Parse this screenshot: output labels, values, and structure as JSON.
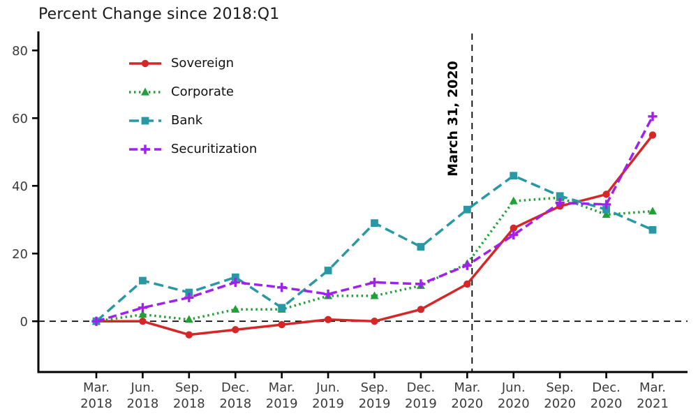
{
  "chart_data": {
    "type": "line",
    "title": "Percent Change since 2018:Q1",
    "xlabel": "",
    "ylabel": "",
    "categories": [
      "Mar. 2018",
      "Jun. 2018",
      "Sep. 2018",
      "Dec. 2018",
      "Mar. 2019",
      "Jun. 2019",
      "Sep. 2019",
      "Dec. 2019",
      "Mar. 2020",
      "Jun. 2020",
      "Sep. 2020",
      "Dec. 2020",
      "Mar. 2021"
    ],
    "series": [
      {
        "name": "Sovereign",
        "color": "#d62728",
        "marker": "circle",
        "dash": "solid",
        "values": [
          0,
          0,
          -4,
          -2.5,
          -1,
          0.5,
          0,
          3.5,
          11,
          27.5,
          34,
          37.5,
          55
        ]
      },
      {
        "name": "Corporate",
        "color": "#22a038",
        "marker": "triangle",
        "dash": "2.5 4.5",
        "values": [
          0,
          2,
          0.5,
          3.5,
          3.5,
          7.5,
          7.5,
          10.5,
          17,
          35.5,
          36.5,
          31.5,
          32.5
        ]
      },
      {
        "name": "Bank",
        "color": "#2899a4",
        "marker": "square",
        "dash": "14 7",
        "values": [
          0,
          12,
          8.5,
          13,
          4,
          15,
          29,
          22,
          33,
          43,
          37,
          33,
          27
        ]
      },
      {
        "name": "Securitization",
        "color": "#a020f0",
        "marker": "plus",
        "dash": "12 6",
        "values": [
          0,
          4,
          7,
          11.5,
          10,
          8,
          11.5,
          11,
          16.5,
          25.5,
          35,
          34.5,
          60.5
        ]
      }
    ],
    "yticks": [
      0,
      20,
      40,
      60,
      80
    ],
    "ylim": [
      -15,
      85
    ],
    "grid": false,
    "legend_position": "upper-left",
    "zero_reference_line": true,
    "annotations": [
      {
        "label": "March 31, 2020",
        "x_category": "Mar. 2020",
        "x_index": 8,
        "style": "vertical-dashed-line"
      }
    ]
  }
}
